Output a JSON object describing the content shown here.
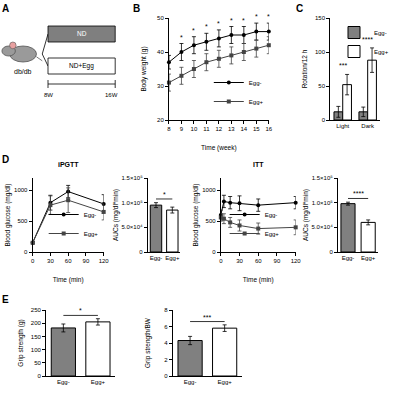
{
  "diagram": {
    "panel": "A",
    "mouse_label": "db/db",
    "groups": [
      "ND",
      "ND+Egg"
    ],
    "timeline": [
      "8W",
      "16W"
    ]
  },
  "chart_data": [
    {
      "panel": "B",
      "type": "line",
      "x_label": "Time (week)",
      "y_label": "Body weight (g)",
      "x": [
        8,
        9,
        10,
        11,
        12,
        13,
        14,
        15,
        16
      ],
      "xlim": [
        8,
        16
      ],
      "xticks": [
        8,
        9,
        10,
        11,
        12,
        13,
        14,
        15,
        16
      ],
      "ylim": [
        20,
        50
      ],
      "yticks": [
        20,
        30,
        40,
        50
      ],
      "legend": "lower right",
      "series": [
        {
          "name": "Egg-",
          "color": "#000000",
          "marker": "circle",
          "values": [
            37,
            40,
            42,
            43,
            44,
            45,
            45,
            46,
            46
          ],
          "errors": [
            2,
            2.5,
            2.5,
            2.5,
            2.5,
            2.5,
            2.5,
            2.5,
            2.5
          ]
        },
        {
          "name": "Egg+",
          "color": "#444444",
          "marker": "square",
          "values": [
            31,
            33,
            35,
            37,
            38,
            39,
            40,
            41,
            42
          ],
          "errors": [
            2.5,
            2.5,
            2.5,
            2.5,
            2.5,
            2.5,
            2.5,
            2.5,
            2.5
          ]
        }
      ],
      "annotations": [
        {
          "x": 9,
          "text": "*"
        },
        {
          "x": 10,
          "text": "*"
        },
        {
          "x": 11,
          "text": "*"
        },
        {
          "x": 12,
          "text": "*"
        },
        {
          "x": 13,
          "text": "*"
        },
        {
          "x": 14,
          "text": "*"
        },
        {
          "x": 15,
          "text": "*"
        },
        {
          "x": 16,
          "text": "*"
        }
      ]
    },
    {
      "panel": "C",
      "type": "bar",
      "y_label": "Rotation/12 h",
      "categories": [
        "Light",
        "Dark"
      ],
      "ylim": [
        0,
        150
      ],
      "yticks": [
        0,
        50,
        100,
        150
      ],
      "legend": "upper left",
      "series": [
        {
          "name": "Egg-",
          "color": "#808080",
          "values": [
            12,
            12
          ],
          "errors": [
            8,
            7
          ]
        },
        {
          "name": "Egg+",
          "color": "#ffffff",
          "values": [
            52,
            88
          ],
          "errors": [
            15,
            18
          ]
        }
      ],
      "annotations": [
        {
          "category": "Light",
          "text": "***"
        },
        {
          "category": "Dark",
          "text": "****"
        }
      ]
    },
    {
      "panel": "D",
      "type": "line",
      "title": "iPGTT",
      "x_label": "Time (min)",
      "y_label": "Blood glucose (mg/dl)",
      "x": [
        0,
        30,
        60,
        120
      ],
      "xlim": [
        0,
        120
      ],
      "xticks": [
        0,
        30,
        60,
        90,
        120
      ],
      "ylim": [
        0,
        1200
      ],
      "yticks": [
        0,
        500,
        1000
      ],
      "legend": "lower right",
      "series": [
        {
          "name": "Egg-",
          "color": "#000000",
          "marker": "circle",
          "values": [
            150,
            800,
            980,
            780
          ],
          "errors": [
            20,
            120,
            100,
            150
          ]
        },
        {
          "name": "Egg+",
          "color": "#444444",
          "marker": "square",
          "values": [
            150,
            760,
            840,
            650
          ],
          "errors": [
            20,
            150,
            200,
            130
          ]
        }
      ]
    },
    {
      "type": "bar",
      "y_label": "AUCs (mg/dl*min)",
      "categories": [
        "Egg-",
        "Egg+"
      ],
      "values": [
        95000,
        85000
      ],
      "errors": [
        5000,
        6000
      ],
      "colors": [
        "#808080",
        "#ffffff"
      ],
      "ylim": [
        0,
        150000
      ],
      "yticks": [
        0,
        {
          "value": 50000,
          "label": "5.0×10⁴"
        },
        {
          "value": 100000,
          "label": "1.0×10⁵"
        },
        {
          "value": 150000,
          "label": "1.5×10⁵"
        }
      ],
      "annotations": [
        {
          "text": "*"
        }
      ]
    },
    {
      "type": "line",
      "title": "ITT",
      "x_label": "Time (min)",
      "y_label": "Blood glucose (mg/dl)",
      "x": [
        0,
        5,
        15,
        30,
        60,
        120
      ],
      "xlim": [
        0,
        120
      ],
      "xticks": [
        0,
        30,
        60,
        90,
        120
      ],
      "ylim": [
        0,
        1200
      ],
      "yticks": [
        0,
        500,
        1000
      ],
      "legend": "lower left",
      "series": [
        {
          "name": "Egg-",
          "color": "#000000",
          "marker": "circle",
          "values": [
            600,
            820,
            800,
            790,
            760,
            800
          ],
          "errors": [
            80,
            100,
            100,
            120,
            100,
            100
          ]
        },
        {
          "name": "Egg+",
          "color": "#444444",
          "marker": "square",
          "values": [
            560,
            540,
            480,
            430,
            380,
            400
          ],
          "errors": [
            60,
            80,
            80,
            90,
            90,
            120
          ]
        }
      ]
    },
    {
      "type": "bar",
      "y_label": "AUCs (mg/dl*min)",
      "categories": [
        "Egg-",
        "Egg+"
      ],
      "values": [
        98000,
        60000
      ],
      "errors": [
        3000,
        5000
      ],
      "colors": [
        "#808080",
        "#ffffff"
      ],
      "ylim": [
        0,
        150000
      ],
      "yticks": [
        0,
        {
          "value": 50000,
          "label": "5.0×10⁴"
        },
        {
          "value": 100000,
          "label": "1.0×10⁵"
        },
        {
          "value": 150000,
          "label": "1.5×10⁵"
        }
      ],
      "annotations": [
        {
          "text": "****"
        }
      ]
    },
    {
      "panel": "E",
      "type": "bar",
      "y_label": "Grip strength (g)",
      "categories": [
        "Egg-",
        "Egg+"
      ],
      "values": [
        182,
        205
      ],
      "errors": [
        15,
        12
      ],
      "colors": [
        "#808080",
        "#ffffff"
      ],
      "ylim": [
        0,
        250
      ],
      "yticks": [
        0,
        50,
        100,
        150,
        200,
        250
      ],
      "annotations": [
        {
          "text": "*"
        }
      ]
    },
    {
      "type": "bar",
      "y_label": "Grip strength/BW",
      "categories": [
        "Egg-",
        "Egg+"
      ],
      "values": [
        4.3,
        5.8
      ],
      "errors": [
        0.5,
        0.4
      ],
      "colors": [
        "#808080",
        "#ffffff"
      ],
      "ylim": [
        0,
        8
      ],
      "yticks": [
        0,
        2,
        4,
        6,
        8
      ],
      "annotations": [
        {
          "text": "***"
        }
      ]
    }
  ]
}
